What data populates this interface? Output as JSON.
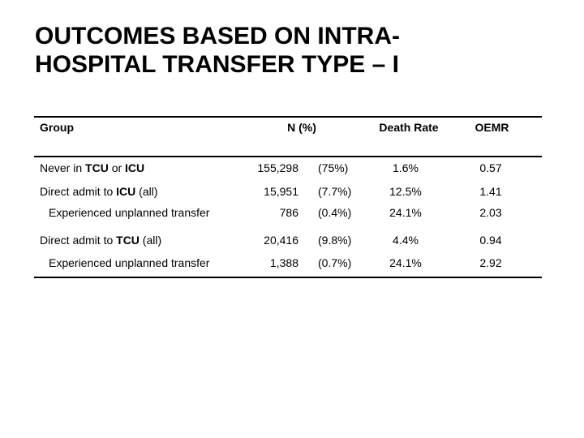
{
  "slide": {
    "title_line1": "OUTCOMES BASED ON INTRA-",
    "title_line2": "HOSPITAL TRANSFER TYPE – I"
  },
  "colors": {
    "background": "#ffffff",
    "text": "#000000",
    "rule": "#000000"
  },
  "table": {
    "headers": {
      "group": "Group",
      "n": "N (%)",
      "death_rate": "Death Rate",
      "oemr": "OEMR"
    },
    "rows": [
      {
        "group_parts": [
          "Never in ",
          "TCU",
          " or ",
          "ICU",
          ""
        ],
        "n": "155,298",
        "pct": "(75%)",
        "death": "1.6%",
        "oemr": "0.57"
      },
      {
        "group_parts": [
          "Direct admit to ",
          "ICU",
          " (all)",
          "",
          ""
        ],
        "n": "15,951",
        "pct": "(7.7%)",
        "death": "12.5%",
        "oemr": "1.41"
      },
      {
        "group_parts": [
          "Experienced unplanned transfer",
          "",
          "",
          "",
          ""
        ],
        "n": "786",
        "pct": "(0.4%)",
        "death": "24.1%",
        "oemr": "2.03"
      },
      {
        "group_parts": [
          "Direct admit to ",
          "TCU",
          " (all)",
          "",
          ""
        ],
        "n": "20,416",
        "pct": "(9.8%)",
        "death": "4.4%",
        "oemr": "0.94"
      },
      {
        "group_parts": [
          "Experienced unplanned transfer",
          "",
          "",
          "",
          ""
        ],
        "n": "1,388",
        "pct": "(0.7%)",
        "death": "24.1%",
        "oemr": "2.92"
      }
    ]
  }
}
